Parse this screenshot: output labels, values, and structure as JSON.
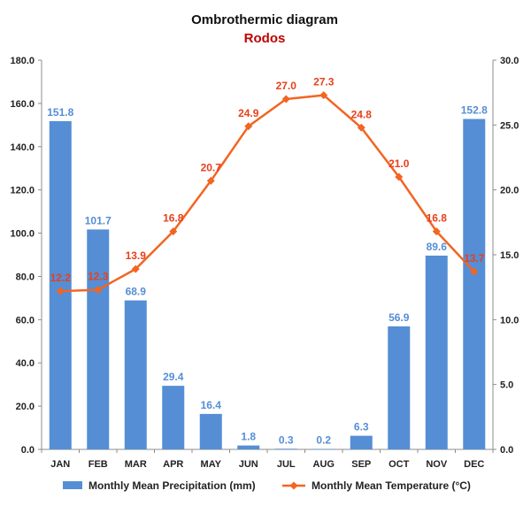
{
  "chart_data": {
    "type": "bar+line",
    "title": "Ombrothermic diagram",
    "subtitle": "Rodos",
    "categories": [
      "JAN",
      "FEB",
      "MAR",
      "APR",
      "MAY",
      "JUN",
      "JUL",
      "AUG",
      "SEP",
      "OCT",
      "NOV",
      "DEC"
    ],
    "series": [
      {
        "name": "Monthly Mean Precipitation (mm)",
        "type": "bar",
        "axis": "left",
        "color": "#558ED5",
        "values": [
          151.8,
          101.7,
          68.9,
          29.4,
          16.4,
          1.8,
          0.3,
          0.2,
          6.3,
          56.9,
          89.6,
          152.8
        ],
        "labels": [
          "151.8",
          "101.7",
          "68.9",
          "29.4",
          "16.4",
          "1.8",
          "0.3",
          "0.2",
          "6.3",
          "56.9",
          "89.6",
          "152.8"
        ]
      },
      {
        "name": "Monthly Mean Temperature (°C)",
        "type": "line",
        "axis": "right",
        "color": "#F26522",
        "label_color": "#E8401C",
        "values": [
          12.2,
          12.3,
          13.9,
          16.8,
          20.7,
          24.9,
          27.0,
          27.3,
          24.8,
          21.0,
          16.8,
          13.7
        ],
        "labels": [
          "12.2",
          "12.3",
          "13.9",
          "16.8",
          "20.7",
          "24.9",
          "27.0",
          "27.3",
          "24.8",
          "21.0",
          "16.8",
          "13.7"
        ]
      }
    ],
    "y_left": {
      "min": 0,
      "max": 180,
      "ticks": [
        "0.0",
        "20.0",
        "40.0",
        "60.0",
        "80.0",
        "100.0",
        "120.0",
        "140.0",
        "160.0",
        "180.0"
      ]
    },
    "y_right": {
      "min": 0,
      "max": 30,
      "ticks": [
        "0.0",
        "5.0",
        "10.0",
        "15.0",
        "20.0",
        "25.0",
        "30.0"
      ]
    },
    "subtitle_color": "#C00000",
    "grid": false,
    "legend_position": "bottom"
  }
}
